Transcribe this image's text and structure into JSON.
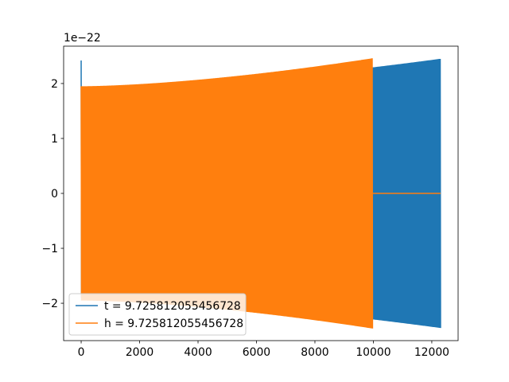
{
  "chart_data": {
    "type": "line",
    "title": "",
    "xlabel": "",
    "ylabel": "",
    "xlim": [
      -600,
      12900
    ],
    "ylim": [
      -2.68,
      2.68
    ],
    "y_offset_text": "1e−22",
    "x_ticks": [
      0,
      2000,
      4000,
      6000,
      8000,
      10000,
      12000
    ],
    "x_tick_labels": [
      "0",
      "2000",
      "4000",
      "6000",
      "8000",
      "10000",
      "12000"
    ],
    "y_ticks": [
      -2,
      -1,
      0,
      1,
      2
    ],
    "y_tick_labels": [
      "−2",
      "−1",
      "0",
      "1",
      "2"
    ],
    "grid": false,
    "legend_position": "lower-left",
    "series": [
      {
        "name": "t = 9.725812055456728",
        "color": "#1f77b4",
        "description": "oscillating signal, amplitude envelope",
        "x_start": 0,
        "x_end": 12300,
        "spike_peak": 2.42,
        "envelope_start": 1.9,
        "envelope_end": 2.45
      },
      {
        "name": "h = 9.725812055456728",
        "color": "#ff7f0e",
        "x_start": 0,
        "x_end": 9980,
        "envelope_start": 1.95,
        "envelope_end": 2.46,
        "zero_after": [
          9980,
          12300
        ]
      }
    ]
  }
}
